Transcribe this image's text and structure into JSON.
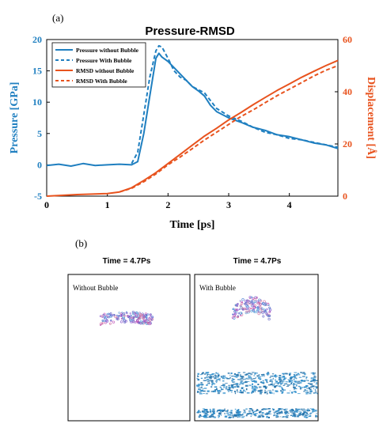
{
  "panel_a_label": "(a)",
  "panel_b_label": "(b)",
  "colors": {
    "pressure": "#1f7fc0",
    "rmsd": "#e8531e",
    "axis": "#000000"
  },
  "chart_data": {
    "type": "line",
    "title": "Pressure-RMSD",
    "xlabel": "Time [ps]",
    "ylabel_left": "Pressure [GPa]",
    "ylabel_right": "Displacement [Å]",
    "xlim": [
      0,
      4.8
    ],
    "ylim_left": [
      -5,
      20
    ],
    "ylim_right": [
      0,
      60
    ],
    "xticks": [
      0,
      1,
      2,
      3,
      4
    ],
    "yticks_left": [
      -5,
      0,
      5,
      10,
      15,
      20
    ],
    "yticks_right": [
      0,
      20,
      40,
      60
    ],
    "legend_position": "top-left",
    "series": [
      {
        "name": "Pressure without Bubble",
        "axis": "left",
        "style": "solid",
        "color": "#1f7fc0",
        "x": [
          0,
          0.2,
          0.4,
          0.6,
          0.8,
          1.0,
          1.2,
          1.4,
          1.5,
          1.6,
          1.7,
          1.8,
          1.85,
          1.9,
          2.0,
          2.1,
          2.2,
          2.3,
          2.4,
          2.5,
          2.6,
          2.7,
          2.8,
          3.0,
          3.2,
          3.4,
          3.6,
          3.8,
          4.0,
          4.2,
          4.4,
          4.6,
          4.8
        ],
        "y": [
          -0.1,
          0.1,
          -0.2,
          0.2,
          -0.1,
          0.0,
          0.1,
          0.0,
          0.5,
          5.0,
          11.0,
          17.0,
          17.8,
          17.2,
          16.5,
          15.5,
          14.5,
          13.5,
          12.5,
          11.8,
          11.0,
          9.5,
          8.5,
          7.5,
          6.8,
          6.0,
          5.5,
          4.8,
          4.5,
          4.0,
          3.5,
          3.2,
          2.6
        ]
      },
      {
        "name": "Pressure With Bubble",
        "axis": "left",
        "style": "dashed",
        "color": "#1f7fc0",
        "x": [
          1.4,
          1.5,
          1.6,
          1.7,
          1.8,
          1.85,
          1.9,
          2.0,
          2.1,
          2.2,
          2.3,
          2.4,
          2.5,
          2.6,
          2.8,
          3.0,
          3.2,
          3.4,
          3.6,
          3.8,
          4.0,
          4.2,
          4.4,
          4.6,
          4.8
        ],
        "y": [
          0.2,
          2.0,
          8.0,
          14.0,
          18.2,
          19.0,
          18.8,
          17.0,
          15.0,
          14.0,
          13.5,
          12.5,
          12.0,
          11.5,
          9.0,
          7.8,
          7.0,
          6.0,
          5.2,
          4.8,
          4.2,
          4.0,
          3.6,
          3.2,
          2.8
        ]
      },
      {
        "name": "RMSD without Bubble",
        "axis": "right",
        "style": "solid",
        "color": "#e8531e",
        "x": [
          0,
          0.5,
          1.0,
          1.2,
          1.4,
          1.6,
          1.8,
          2.0,
          2.2,
          2.4,
          2.6,
          2.8,
          3.0,
          3.2,
          3.4,
          3.6,
          3.8,
          4.0,
          4.2,
          4.4,
          4.6,
          4.8
        ],
        "y": [
          0,
          0.6,
          1.0,
          1.6,
          3.2,
          6.0,
          9.0,
          12.5,
          16.0,
          19.5,
          23.0,
          26.0,
          29.2,
          32.0,
          35.0,
          37.8,
          40.5,
          43.0,
          45.5,
          47.8,
          50.0,
          52.0
        ]
      },
      {
        "name": "RMSD With Bubble",
        "axis": "right",
        "style": "dashed",
        "color": "#e8531e",
        "x": [
          1.2,
          1.4,
          1.6,
          1.8,
          2.0,
          2.2,
          2.4,
          2.6,
          2.8,
          3.0,
          3.2,
          3.4,
          3.6,
          3.8,
          4.0,
          4.2,
          4.4,
          4.6,
          4.8
        ],
        "y": [
          1.6,
          3.0,
          5.5,
          8.5,
          12.0,
          15.0,
          18.2,
          21.5,
          24.5,
          27.5,
          30.5,
          33.0,
          35.8,
          38.5,
          41.0,
          43.5,
          46.0,
          48.2,
          50.0
        ]
      }
    ]
  },
  "panel_b": {
    "left": {
      "header": "Time = 4.7Ps",
      "label": "Without Bubble"
    },
    "right": {
      "header": "Time = 4.7Ps",
      "label": "With Bubble"
    }
  }
}
